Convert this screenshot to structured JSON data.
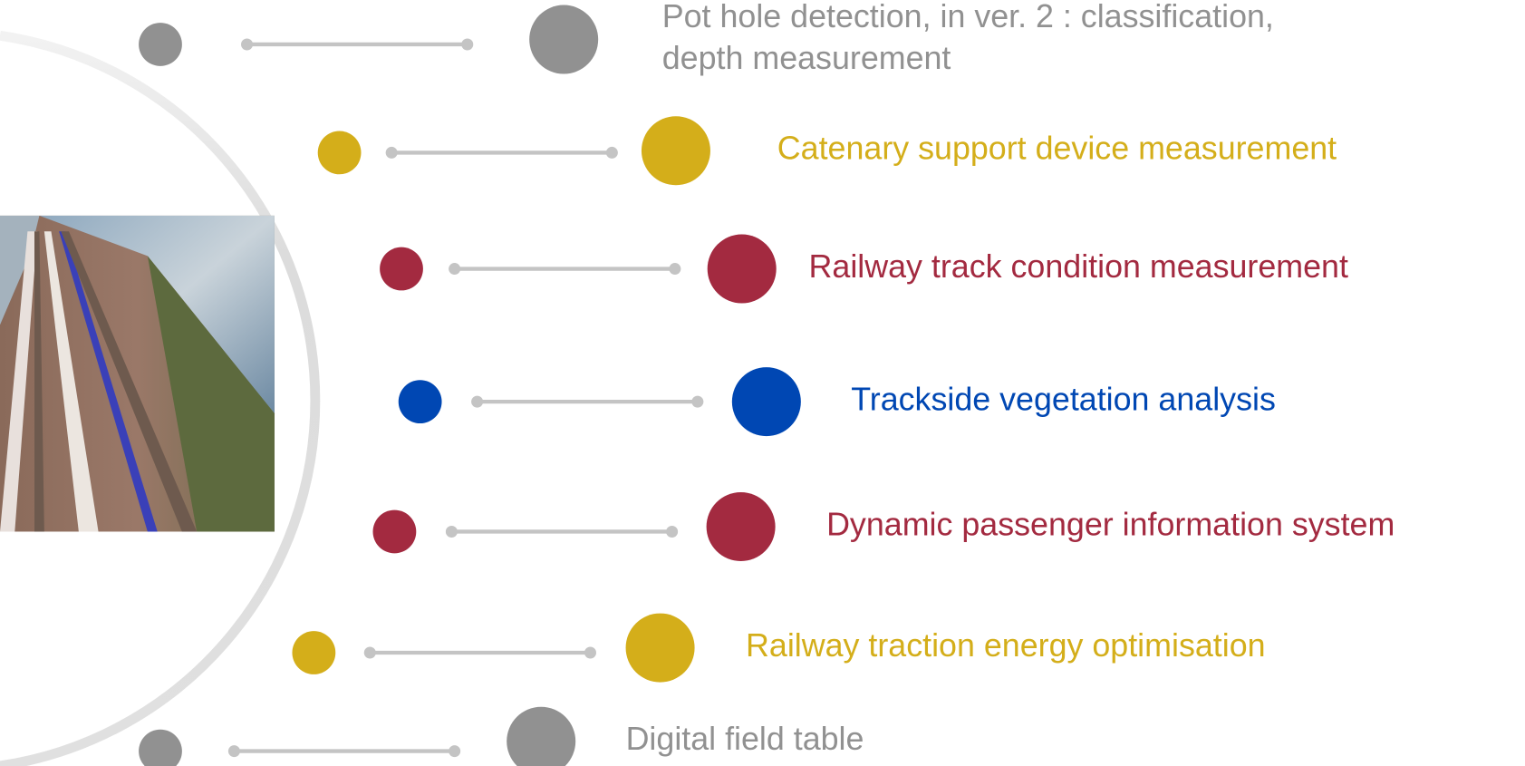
{
  "items": [
    {
      "lines": [
        "Pot hole detection, in ver. 2 : classification,",
        "depth measurement"
      ],
      "color": "#919191"
    },
    {
      "lines": [
        "Catenary support device measurement"
      ],
      "color": "#d4ae1a"
    },
    {
      "lines": [
        "Railway track condition measurement"
      ],
      "color": "#a32a40"
    },
    {
      "lines": [
        "Trackside vegetation analysis"
      ],
      "color": "#0047b3"
    },
    {
      "lines": [
        "Dynamic passenger information system"
      ],
      "color": "#a32a40"
    },
    {
      "lines": [
        "Railway traction energy optimisation"
      ],
      "color": "#d4ae1a"
    },
    {
      "lines": [
        "Digital field table"
      ],
      "color": "#919191"
    }
  ]
}
